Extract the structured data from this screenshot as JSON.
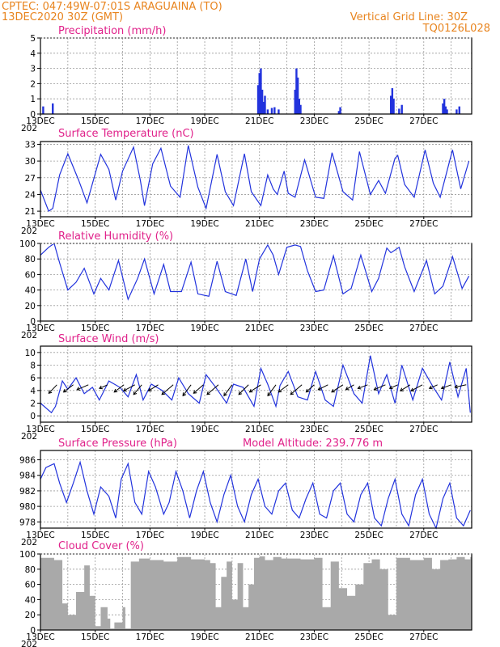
{
  "header": {
    "left_line1": "CPTEC:   047:49W-07:01S   ARAGUAINA (TO)",
    "left_line2": "13DEC2020 30Z (GMT)",
    "right_line1": "Vertical Grid Line: 30Z",
    "right_line2": "TQ0126L028"
  },
  "colors": {
    "header": "#e8841e",
    "title": "#e0218a",
    "line": "#2233dd",
    "cloud": "#a9a9a9"
  },
  "x_axis": {
    "labels": [
      "13DEC",
      "15DEC",
      "17DEC",
      "19DEC",
      "21DEC",
      "23DEC",
      "25DEC",
      "27DEC"
    ],
    "year_stub": "202"
  },
  "chart_data": [
    {
      "type": "bar",
      "title": "Precipitation (mm/h)",
      "ylim": [
        0,
        5
      ],
      "yticks": [
        "0",
        "1",
        "2",
        "3",
        "4",
        "5"
      ],
      "grid": true,
      "x_unit": "days since 13DEC 00Z",
      "bars": [
        [
          0.1,
          0.5
        ],
        [
          0.45,
          0.7
        ],
        [
          7.95,
          1.9
        ],
        [
          8.0,
          2.7
        ],
        [
          8.05,
          3.0
        ],
        [
          8.1,
          1.6
        ],
        [
          8.15,
          0.8
        ],
        [
          8.2,
          1.2
        ],
        [
          8.3,
          0.3
        ],
        [
          8.45,
          0.4
        ],
        [
          8.55,
          0.45
        ],
        [
          8.7,
          0.3
        ],
        [
          9.3,
          1.6
        ],
        [
          9.35,
          3.0
        ],
        [
          9.4,
          2.4
        ],
        [
          9.45,
          1.0
        ],
        [
          9.5,
          0.6
        ],
        [
          10.9,
          0.2
        ],
        [
          10.95,
          0.45
        ],
        [
          12.8,
          1.2
        ],
        [
          12.85,
          1.7
        ],
        [
          12.9,
          1.0
        ],
        [
          13.1,
          0.35
        ],
        [
          13.2,
          0.6
        ],
        [
          14.7,
          0.7
        ],
        [
          14.75,
          1.0
        ],
        [
          14.8,
          0.5
        ],
        [
          14.85,
          0.3
        ],
        [
          15.2,
          0.3
        ],
        [
          15.3,
          0.5
        ]
      ]
    },
    {
      "type": "line",
      "title": "Surface Temperature (nC)",
      "ylim": [
        20,
        33.5
      ],
      "yticks": [
        "21",
        "24",
        "27",
        "30",
        "33"
      ],
      "grid": true,
      "x": [
        0,
        0.3,
        0.45,
        0.7,
        1.0,
        1.4,
        1.7,
        2.2,
        2.5,
        2.75,
        3.0,
        3.4,
        3.65,
        3.8,
        4.1,
        4.4,
        4.75,
        5.1,
        5.4,
        5.75,
        6.05,
        6.45,
        6.75,
        7.05,
        7.45,
        7.7,
        8.05,
        8.3,
        8.5,
        8.65,
        8.9,
        9.05,
        9.3,
        9.65,
        10.05,
        10.35,
        10.65,
        11.05,
        11.4,
        11.65,
        12.05,
        12.35,
        12.6,
        12.95,
        13.05,
        13.3,
        13.65,
        14.05,
        14.35,
        14.6,
        15.05,
        15.35,
        15.65
      ],
      "values": [
        24.8,
        21.0,
        21.5,
        27.5,
        31.3,
        26.5,
        22.5,
        31.2,
        28.5,
        23.0,
        28.2,
        32.5,
        26.5,
        22.0,
        29.5,
        32.3,
        25.5,
        23.5,
        32.8,
        25.3,
        21.5,
        31.2,
        24.5,
        22.0,
        31.3,
        24.5,
        22.0,
        27.5,
        25.0,
        24.0,
        28.2,
        24.2,
        23.5,
        30.2,
        23.5,
        23.3,
        31.5,
        24.5,
        23.0,
        31.7,
        24.0,
        26.5,
        24.2,
        30.5,
        31.0,
        25.8,
        23.5,
        32.0,
        26.0,
        23.5,
        32.0,
        25.0,
        30.0
      ]
    },
    {
      "type": "line",
      "title": "Relative Humidity (%)",
      "ylim": [
        0,
        100
      ],
      "yticks": [
        "0",
        "20",
        "40",
        "60",
        "80",
        "100"
      ],
      "grid": true,
      "x": [
        0,
        0.3,
        0.5,
        0.7,
        1.0,
        1.3,
        1.6,
        1.95,
        2.2,
        2.5,
        2.85,
        3.2,
        3.55,
        3.8,
        4.15,
        4.5,
        4.75,
        5.15,
        5.5,
        5.75,
        6.15,
        6.45,
        6.75,
        7.15,
        7.5,
        7.75,
        8.0,
        8.3,
        8.5,
        8.7,
        9.0,
        9.3,
        9.5,
        9.75,
        10.05,
        10.35,
        10.7,
        11.05,
        11.35,
        11.7,
        12.1,
        12.35,
        12.65,
        12.8,
        13.1,
        13.3,
        13.65,
        14.1,
        14.4,
        14.7,
        15.05,
        15.4,
        15.65
      ],
      "values": [
        85,
        95,
        100,
        75,
        40,
        50,
        68,
        35,
        55,
        40,
        78,
        28,
        55,
        80,
        35,
        73,
        38,
        38,
        76,
        35,
        32,
        77,
        38,
        33,
        80,
        38,
        80,
        98,
        85,
        60,
        95,
        98,
        96,
        65,
        38,
        40,
        84,
        35,
        42,
        85,
        38,
        55,
        94,
        88,
        95,
        70,
        38,
        78,
        35,
        45,
        83,
        42,
        58
      ]
    },
    {
      "type": "line",
      "title": "Surface Wind (m/s)",
      "ylim": [
        -1,
        11
      ],
      "yticks": [
        "0",
        "2",
        "4",
        "6",
        "8",
        "10"
      ],
      "grid": true,
      "x": [
        0,
        0.4,
        0.55,
        0.8,
        1.0,
        1.3,
        1.6,
        1.9,
        2.15,
        2.5,
        2.9,
        3.2,
        3.5,
        3.75,
        4.05,
        4.45,
        4.8,
        5.05,
        5.4,
        5.8,
        6.05,
        6.4,
        6.8,
        7.05,
        7.4,
        7.8,
        8.05,
        8.3,
        8.6,
        8.75,
        9.05,
        9.4,
        9.75,
        10.05,
        10.4,
        10.7,
        11.05,
        11.45,
        11.75,
        12.05,
        12.35,
        12.65,
        12.95,
        13.2,
        13.6,
        13.95,
        14.35,
        14.65,
        14.95,
        15.25,
        15.55,
        15.7
      ],
      "values": [
        2.0,
        0.5,
        1.5,
        5.5,
        4.2,
        6.0,
        3.5,
        4.5,
        2.5,
        5.5,
        4.5,
        3.0,
        6.5,
        2.5,
        5.0,
        4.0,
        2.5,
        6.0,
        3.5,
        2.0,
        6.5,
        4.5,
        2.0,
        5.0,
        4.5,
        1.5,
        7.5,
        5.0,
        1.5,
        4.8,
        7.0,
        3.0,
        2.5,
        7.0,
        2.5,
        1.5,
        8.0,
        3.5,
        2.0,
        9.5,
        3.5,
        6.5,
        2.0,
        8.0,
        2.5,
        7.5,
        4.5,
        2.5,
        8.5,
        3.0,
        7.5,
        0.5
      ]
    },
    {
      "type": "line",
      "title": "Surface Pressure (hPa)",
      "annotation": "Model Altitude: 239.776 m",
      "ylim": [
        977.2,
        987.2
      ],
      "yticks": [
        "978",
        "980",
        "982",
        "984",
        "986"
      ],
      "grid": true,
      "x": [
        0,
        0.2,
        0.5,
        0.7,
        0.95,
        1.2,
        1.45,
        1.7,
        1.95,
        2.2,
        2.5,
        2.75,
        2.95,
        3.2,
        3.45,
        3.7,
        3.95,
        4.2,
        4.5,
        4.7,
        4.95,
        5.2,
        5.45,
        5.7,
        5.95,
        6.2,
        6.45,
        6.7,
        6.95,
        7.2,
        7.45,
        7.7,
        7.95,
        8.2,
        8.45,
        8.7,
        8.95,
        9.2,
        9.45,
        9.7,
        9.95,
        10.2,
        10.45,
        10.7,
        10.95,
        11.2,
        11.45,
        11.7,
        11.95,
        12.2,
        12.45,
        12.7,
        12.95,
        13.2,
        13.45,
        13.7,
        13.95,
        14.2,
        14.45,
        14.7,
        14.95,
        15.2,
        15.45,
        15.7
      ],
      "values": [
        983.5,
        985.0,
        985.5,
        983.0,
        980.5,
        983.0,
        985.7,
        982.0,
        979.0,
        982.5,
        981.3,
        978.5,
        983.5,
        985.5,
        980.5,
        979.0,
        984.5,
        982.5,
        979.0,
        980.5,
        984.5,
        982.0,
        978.5,
        982.0,
        984.5,
        980.5,
        978.0,
        981.5,
        984.0,
        980.0,
        978.0,
        981.5,
        983.5,
        980.0,
        979.0,
        982.0,
        983.0,
        979.5,
        978.5,
        981.0,
        983.0,
        979.0,
        978.5,
        982.0,
        983.0,
        979.0,
        978.0,
        981.5,
        983.0,
        978.5,
        977.5,
        981.0,
        983.5,
        979.0,
        977.5,
        981.5,
        983.5,
        979.0,
        977.2,
        981.0,
        983.0,
        978.5,
        977.5,
        979.5
      ]
    },
    {
      "type": "bar",
      "title": "Cloud Cover (%)",
      "ylim": [
        0,
        100
      ],
      "yticks": [
        "0",
        "20",
        "40",
        "60",
        "80",
        "100"
      ],
      "grid": true,
      "x": [
        0.0,
        0.5,
        0.8,
        1.0,
        1.3,
        1.6,
        1.8,
        2.0,
        2.2,
        2.45,
        2.55,
        2.7,
        3.0,
        3.1,
        3.3,
        3.6,
        4.0,
        4.5,
        5.0,
        5.5,
        6.0,
        6.2,
        6.4,
        6.6,
        6.8,
        7.0,
        7.2,
        7.4,
        7.6,
        7.8,
        8.0,
        8.2,
        8.5,
        8.8,
        9.0,
        9.5,
        10.0,
        10.3,
        10.6,
        10.9,
        11.2,
        11.5,
        11.8,
        12.1,
        12.4,
        12.7,
        13.0,
        13.5,
        14.0,
        14.3,
        14.6,
        14.9,
        15.2,
        15.5,
        15.7
      ],
      "values": [
        95,
        92,
        35,
        20,
        50,
        85,
        45,
        5,
        30,
        15,
        2,
        10,
        30,
        2,
        90,
        94,
        92,
        90,
        96,
        93,
        92,
        88,
        30,
        70,
        90,
        40,
        88,
        30,
        60,
        95,
        97,
        92,
        96,
        94,
        94,
        93,
        95,
        30,
        90,
        55,
        45,
        60,
        88,
        93,
        80,
        20,
        95,
        92,
        95,
        80,
        92,
        93,
        96,
        93,
        96
      ]
    }
  ]
}
